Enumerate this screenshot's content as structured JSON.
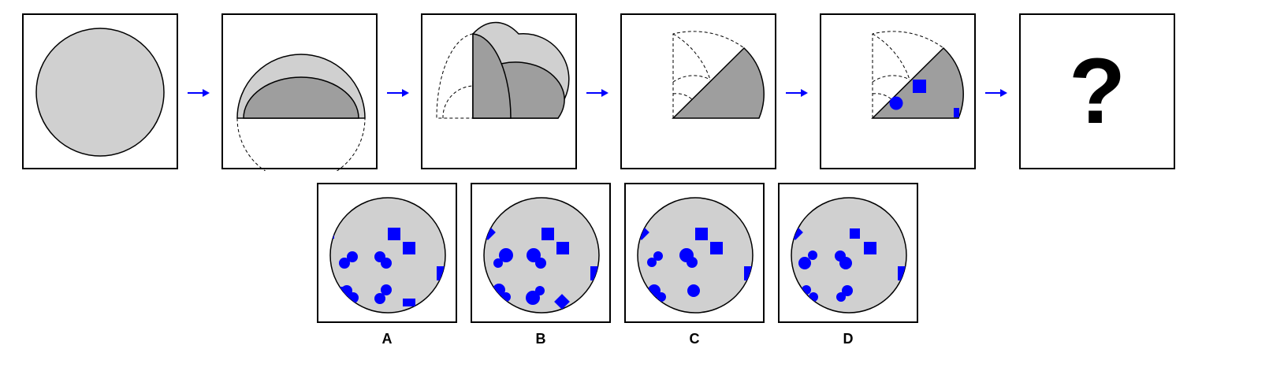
{
  "puzzle": {
    "question_mark": "?",
    "colors": {
      "shape_fill": "#d0d0d0",
      "fold_fill": "#9e9e9e",
      "marker": "#0000ff",
      "outline": "#000000"
    },
    "sequence_steps": [
      "full-circle",
      "fold-in-half",
      "fold-in-quarter",
      "fold-in-eighth",
      "punched-eighth",
      "unknown"
    ]
  },
  "options": [
    {
      "label": "A"
    },
    {
      "label": "B"
    },
    {
      "label": "C"
    },
    {
      "label": "D"
    }
  ]
}
